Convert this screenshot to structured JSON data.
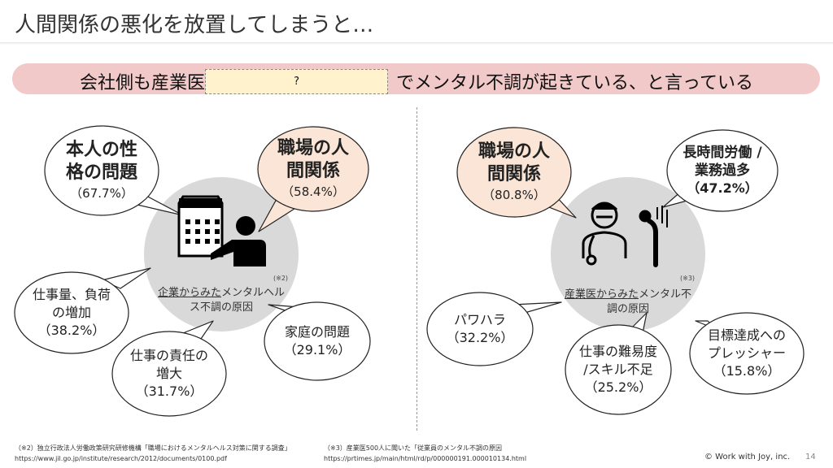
{
  "title": "人間関係の悪化を放置してしまうと…",
  "banner": {
    "left": "会社側も産業医",
    "hidden_placeholder": "?",
    "right": "でメンタル不調が起きている、と言っている"
  },
  "left": {
    "caption_underlined": "企業からみた",
    "caption_rest_1": "メンタルヘル",
    "caption_rest_2": "ス不調の原因",
    "ref": "(※2)",
    "bubbles": [
      {
        "l1": "本人の性",
        "l2": "格の問題",
        "pct": "（67.7%）"
      },
      {
        "l1": "職場の人",
        "l2": "間関係",
        "pct": "（58.4%）"
      },
      {
        "l1": "仕事量、負荷",
        "l2": "の増加",
        "pct": "（38.2%）"
      },
      {
        "l1": "仕事の責任の",
        "l2": "増大",
        "pct": "（31.7%）"
      },
      {
        "l1": "家庭の問題",
        "pct": "（29.1%）"
      }
    ]
  },
  "right": {
    "caption_underlined": "産業医からみた",
    "caption_rest_1": "メンタル不",
    "caption_rest_2": "調の原因",
    "ref": "(※3)",
    "bubbles": [
      {
        "l1": "職場の人",
        "l2": "間関係",
        "pct": "（80.8%）"
      },
      {
        "l1": "長時間労働 /",
        "l2": "業務過多",
        "pct": "（47.2%）"
      },
      {
        "l1": "パワハラ",
        "pct": "（32.2%）"
      },
      {
        "l1": "仕事の難易度",
        "l2": "/スキル不足",
        "pct": "（25.2%）"
      },
      {
        "l1": "目標達成への",
        "l2": "プレッシャー",
        "pct": "（15.8%）"
      }
    ]
  },
  "footnotes": {
    "left_1": "（※2）独立行政法人労働政策研究研修機構「職場におけるメンタルヘルス対策に関する調査」",
    "left_2": "https://www.jil.go.jp/institute/research/2012/documents/0100.pdf",
    "right_1": "（※3）産業医500人に聞いた「従業員のメンタル不調の原因",
    "right_2": "https://prtimes.jp/main/html/rd/p/000000191.000010134.html"
  },
  "copyright": "© Work with Joy, inc.",
  "page_number": "14",
  "colors": {
    "banner": "#f2c9c9",
    "peach": "#fbe5d6",
    "circle": "#d9d9d9",
    "qbox": "#fff2cc"
  }
}
